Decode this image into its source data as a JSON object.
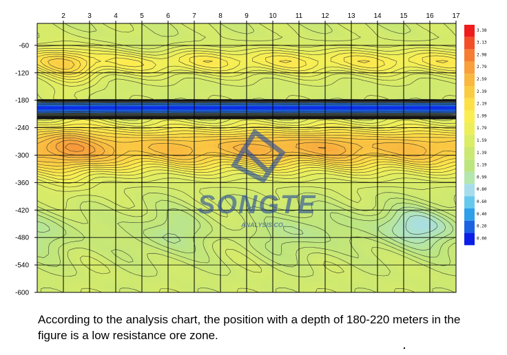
{
  "chart_data": {
    "type": "heatmap",
    "title": "",
    "xlabel": "",
    "ylabel": "",
    "x_ticks": [
      2,
      3,
      4,
      5,
      6,
      7,
      8,
      9,
      10,
      11,
      12,
      13,
      14,
      15,
      16,
      17
    ],
    "y_ticks": [
      -60,
      -120,
      -180,
      -240,
      -300,
      -360,
      -420,
      -480,
      -540,
      -600
    ],
    "xlim": [
      1,
      17
    ],
    "ylim": [
      -600,
      -12
    ],
    "colorbar": {
      "ticks": [
        "3.38",
        "3.13",
        "2.98",
        "2.79",
        "2.59",
        "2.39",
        "2.19",
        "1.99",
        "1.79",
        "1.59",
        "1.39",
        "1.19",
        "0.99",
        "0.80",
        "0.60",
        "0.40",
        "0.20",
        "0.00"
      ],
      "colors": [
        "#ee1c1c",
        "#f24f28",
        "#f57e33",
        "#f7a03c",
        "#f9b840",
        "#facc44",
        "#fde048",
        "#fbee52",
        "#ecef5b",
        "#dbec66",
        "#cbe873",
        "#bde57e",
        "#b4e6ad",
        "#a7ddea",
        "#67c8ee",
        "#2f9fea",
        "#1a62e2",
        "#0a1ee6"
      ],
      "range": [
        0,
        3.38
      ]
    },
    "annotations": [
      "low resistance zone at depth -180 to -220 (blue band)"
    ]
  },
  "watermark": {
    "text": "SONGTE",
    "sub": "ANALYSIS CO."
  },
  "caption": "According to the analysis chart, the position with a depth of 180-220 meters in the figure is a low resistance ore zone.",
  "colors": {
    "background": "#ffffff",
    "contour_line": "#222222",
    "low_band": "#0a2ee0",
    "watermark": "#2c4f9a"
  }
}
